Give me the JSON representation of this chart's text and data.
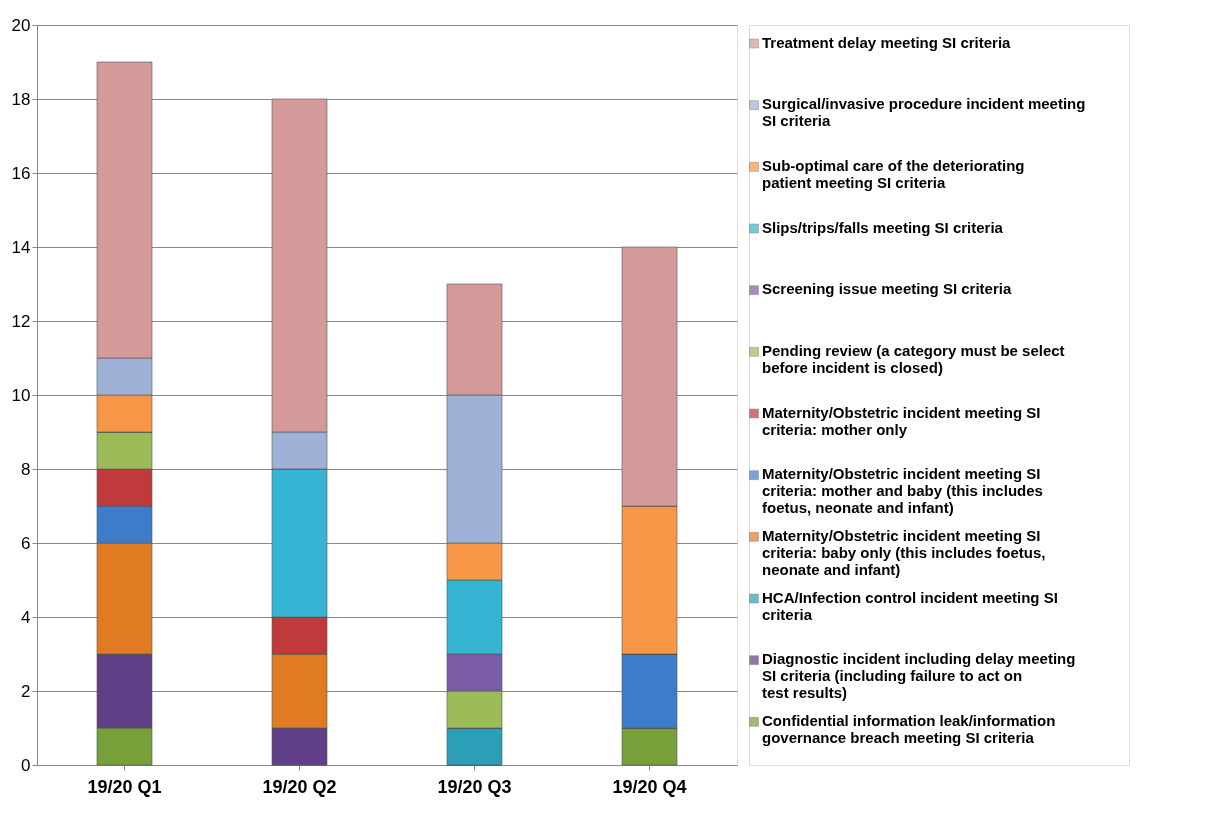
{
  "chart_data": {
    "type": "bar",
    "stacked": true,
    "categories": [
      "19/20 Q1",
      "19/20 Q2",
      "19/20 Q3",
      "19/20 Q4"
    ],
    "ylim": [
      0,
      20
    ],
    "yticks": [
      0,
      2,
      4,
      6,
      8,
      10,
      12,
      14,
      16,
      18,
      20
    ],
    "grid": "y",
    "legend": "right",
    "series": [
      {
        "name": "Confidential information leak/information governance breach meeting SI criteria",
        "color": "#77a03b",
        "values": [
          1,
          0,
          0,
          1
        ]
      },
      {
        "name": "Diagnostic incident including delay meeting SI criteria (including failure to act on test results)",
        "color": "#5f3f85",
        "values": [
          2,
          1,
          0,
          0
        ]
      },
      {
        "name": "HCA/Infection control incident meeting SI criteria",
        "color": "#2c9fb8",
        "values": [
          0,
          0,
          1,
          0
        ]
      },
      {
        "name": "Maternity/Obstetric incident meeting SI criteria: baby only (this includes foetus, neonate and infant)",
        "color": "#e07b24",
        "values": [
          3,
          2,
          0,
          0
        ]
      },
      {
        "name": "Maternity/Obstetric incident meeting SI criteria: mother and baby (this includes foetus, neonate and infant)",
        "color": "#3d7cc9",
        "values": [
          1,
          0,
          0,
          2
        ]
      },
      {
        "name": "Maternity/Obstetric incident meeting SI criteria: mother only",
        "color": "#c0393b",
        "values": [
          1,
          1,
          0,
          0
        ]
      },
      {
        "name": "Pending review (a category must be select before incident is closed)",
        "color": "#9bbb59",
        "values": [
          1,
          0,
          1,
          0
        ]
      },
      {
        "name": "Screening issue meeting SI criteria",
        "color": "#7a5ba6",
        "values": [
          0,
          0,
          1,
          0
        ]
      },
      {
        "name": "Slips/trips/falls meeting SI criteria",
        "color": "#35b5d3",
        "values": [
          0,
          4,
          2,
          0
        ]
      },
      {
        "name": "Sub-optimal care of the deteriorating patient meeting SI criteria",
        "color": "#f79646",
        "values": [
          1,
          0,
          1,
          4
        ]
      },
      {
        "name": "Surgical/invasive procedure incident meeting SI criteria",
        "color": "#9fb1d6",
        "values": [
          1,
          1,
          4,
          0
        ]
      },
      {
        "name": "Treatment delay meeting SI criteria",
        "color": "#d49a9a",
        "values": [
          8,
          9,
          3,
          7
        ]
      }
    ]
  }
}
